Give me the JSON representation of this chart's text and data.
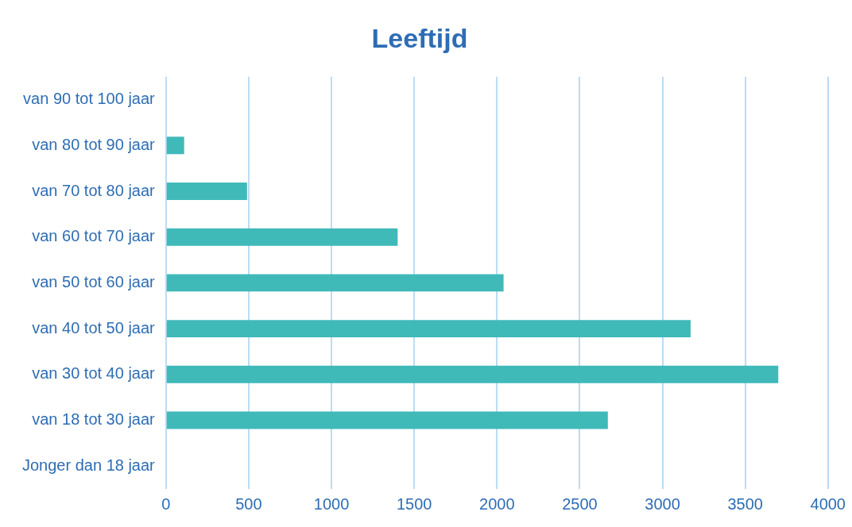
{
  "chart_data": {
    "type": "bar",
    "orientation": "horizontal",
    "title": "Leeftijd",
    "categories": [
      "van 90 tot 100 jaar",
      "van 80 tot 90 jaar",
      "van 70 tot 80 jaar",
      "van 60 tot 70 jaar",
      "van 50 tot 60 jaar",
      "van 40 tot 50 jaar",
      "van 30 tot 40 jaar",
      "van 18 tot 30 jaar",
      "Jonger dan 18 jaar"
    ],
    "values": [
      0,
      110,
      490,
      1400,
      2040,
      3170,
      3700,
      2670,
      0
    ],
    "color": "#40b9b9",
    "xlim": [
      0,
      4000
    ],
    "xticks": [
      0,
      500,
      1000,
      1500,
      2000,
      2500,
      3000,
      3500,
      4000
    ],
    "grid": "x",
    "legend": false
  }
}
